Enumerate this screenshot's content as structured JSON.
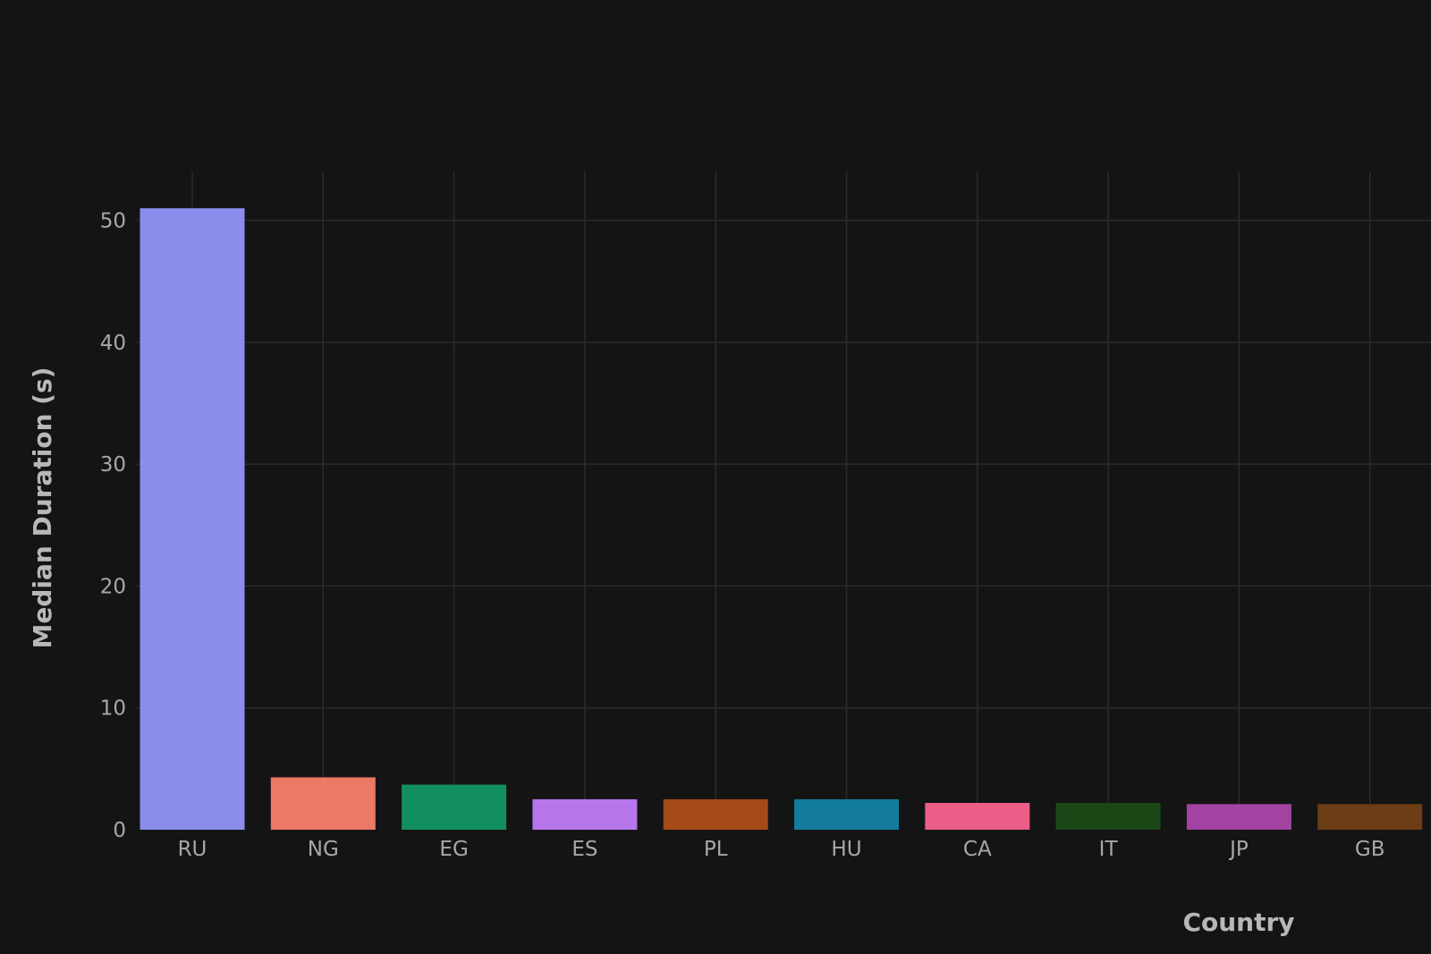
{
  "chart_data": {
    "type": "bar",
    "categories": [
      "RU",
      "NG",
      "EG",
      "ES",
      "PL",
      "HU",
      "CA",
      "IT",
      "JP",
      "GB"
    ],
    "values": [
      51,
      4.3,
      3.7,
      2.5,
      2.5,
      2.5,
      2.2,
      2.2,
      2.1,
      2.1
    ],
    "colors": [
      "#8b8cec",
      "#ec7866",
      "#128f5e",
      "#b776ec",
      "#a44b17",
      "#137b9b",
      "#ea5e87",
      "#1a4716",
      "#a243a2",
      "#6c3c14"
    ],
    "title": "",
    "xlabel": "Country",
    "ylabel": "Median Duration (s)",
    "ylim": [
      0,
      54
    ],
    "yticks": [
      0,
      10,
      20,
      30,
      40,
      50
    ],
    "grid": true,
    "legend": "none",
    "background": "#141414"
  }
}
